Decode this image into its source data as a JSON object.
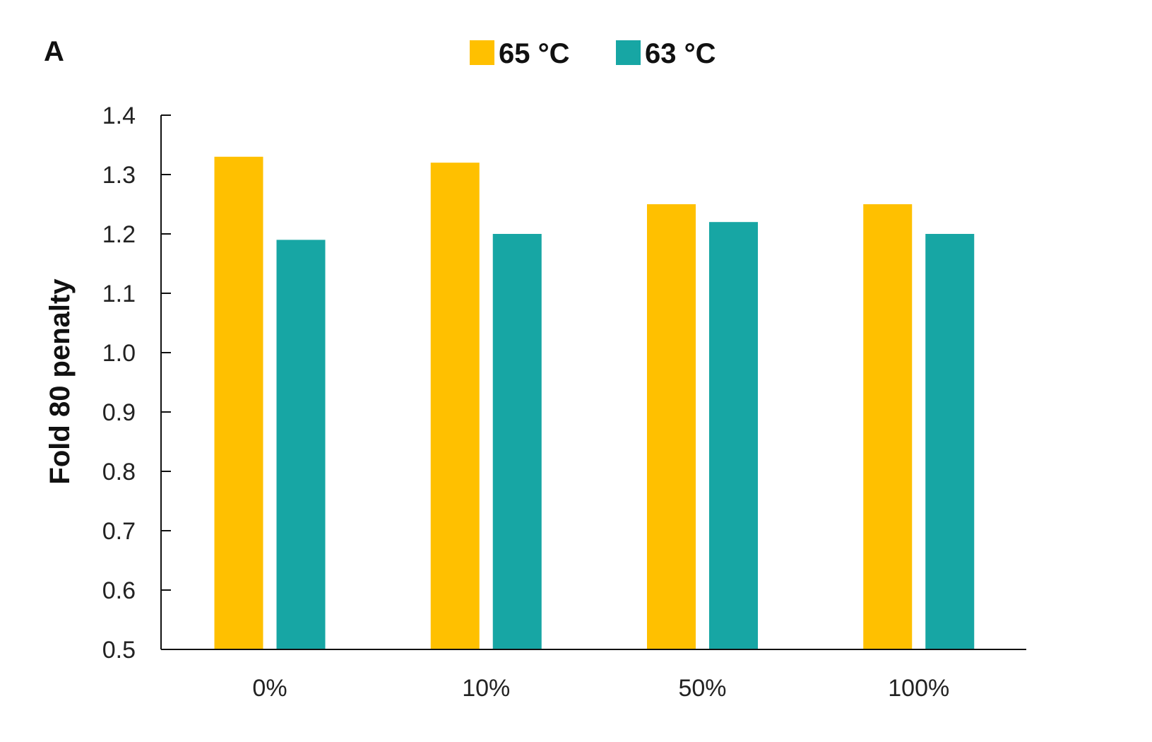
{
  "panel_label": "A",
  "chart_data": {
    "type": "bar",
    "title": "",
    "xlabel": "",
    "ylabel": "Fold 80 penalty",
    "categories": [
      "0%",
      "10%",
      "50%",
      "100%"
    ],
    "series": [
      {
        "name": "65 °C",
        "color": "#FFC000",
        "values": [
          1.33,
          1.32,
          1.25,
          1.25
        ]
      },
      {
        "name": "63 °C",
        "color": "#17A6A4",
        "values": [
          1.19,
          1.2,
          1.22,
          1.2
        ]
      }
    ],
    "ylim": [
      0.5,
      1.4
    ],
    "yticks": [
      "0.5",
      "0.6",
      "0.7",
      "0.8",
      "0.9",
      "1.0",
      "1.1",
      "1.2",
      "1.3",
      "1.4"
    ],
    "grid": false,
    "legend_position": "top-center"
  }
}
